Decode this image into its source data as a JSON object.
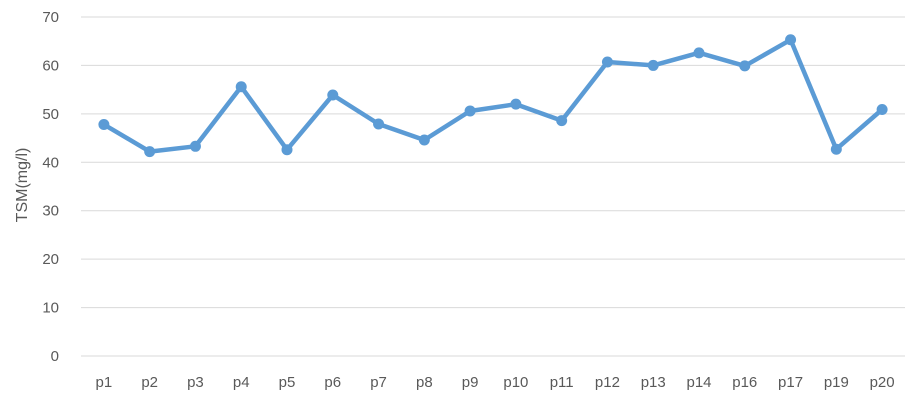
{
  "chart_data": {
    "type": "line",
    "title": "",
    "xlabel": "",
    "ylabel": "TSM(mg/l)",
    "ylim": [
      0,
      70
    ],
    "yticks": [
      0,
      10,
      20,
      30,
      40,
      50,
      60,
      70
    ],
    "grid": true,
    "legend": "none",
    "categories": [
      "p1",
      "p2",
      "p3",
      "p4",
      "p5",
      "p6",
      "p7",
      "p8",
      "p9",
      "p10",
      "p11",
      "p12",
      "p13",
      "p14",
      "p16",
      "p17",
      "p19",
      "p20"
    ],
    "series": [
      {
        "color": "#5b9bd5",
        "values": [
          47.8,
          42.2,
          43.3,
          55.6,
          42.6,
          53.9,
          47.9,
          44.6,
          50.6,
          52.0,
          48.6,
          60.7,
          60.0,
          62.6,
          59.9,
          65.3,
          42.7,
          50.9
        ]
      }
    ]
  }
}
